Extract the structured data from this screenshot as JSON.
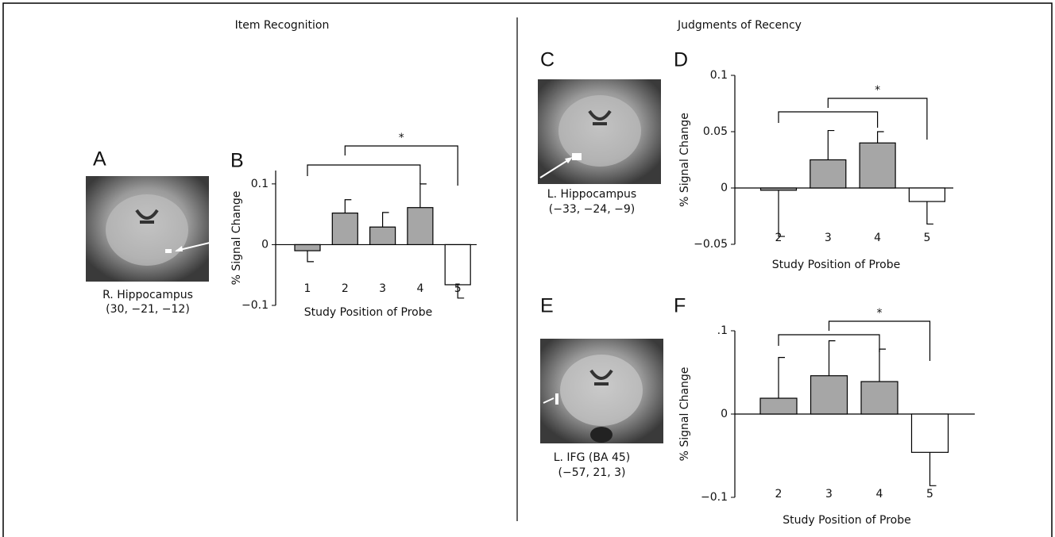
{
  "headings": [
    "Item Recognition",
    "Judgments of Recency"
  ],
  "images": [
    {
      "letter": "A",
      "caption": [
        "R. Hippocampus",
        "(30, −21, −12)"
      ]
    },
    {
      "letter": "C",
      "caption": [
        "L. Hippocampus",
        "(−33, −24, −9)"
      ]
    },
    {
      "letter": "E",
      "caption": [
        "L. IFG (BA 45)",
        "(−57, 21, 3)"
      ]
    }
  ],
  "chart_data": [
    {
      "type": "bar",
      "panel": "B",
      "ylabel": "% Signal Change",
      "xlabel": "Study Position of Probe",
      "categories": [
        "1",
        "2",
        "3",
        "4",
        "5"
      ],
      "values": [
        -0.01,
        0.052,
        0.029,
        0.061,
        -0.066
      ],
      "errors": [
        0.018,
        0.022,
        0.024,
        0.039,
        0.022
      ],
      "colors": [
        "#a6a6a6",
        "#a6a6a6",
        "#a6a6a6",
        "#a6a6a6",
        "#ffffff"
      ],
      "ylim": [
        -0.1,
        0.122
      ],
      "yticks": [
        {
          "value": -0.1,
          "label": "−0.1"
        },
        0,
        0.1
      ],
      "brackets": [
        [
          0,
          3
        ],
        [
          1,
          4
        ]
      ],
      "annotation": "*"
    },
    {
      "type": "bar",
      "panel": "D",
      "ylabel": "% Signal Change",
      "xlabel": "Study Position of Probe",
      "categories": [
        "2",
        "3",
        "4",
        "5"
      ],
      "values": [
        -0.002,
        0.025,
        0.04,
        -0.012
      ],
      "errors": [
        0.041,
        0.026,
        0.01,
        0.02
      ],
      "colors": [
        "#a6a6a6",
        "#a6a6a6",
        "#a6a6a6",
        "#ffffff"
      ],
      "ylim": [
        -0.05,
        0.1
      ],
      "yticks": [
        {
          "value": -0.05,
          "label": "−0.05"
        },
        0,
        0.05,
        0.1
      ],
      "brackets": [
        [
          0,
          2
        ],
        [
          1,
          3
        ]
      ],
      "annotation": "*"
    },
    {
      "type": "bar",
      "panel": "F",
      "ylabel": "% Signal Change",
      "xlabel": "Study Position of Probe",
      "categories": [
        "2",
        "3",
        "4",
        "5"
      ],
      "values": [
        0.019,
        0.046,
        0.039,
        -0.046
      ],
      "errors": [
        0.049,
        0.042,
        0.039,
        0.04
      ],
      "colors": [
        "#a6a6a6",
        "#a6a6a6",
        "#a6a6a6",
        "#ffffff"
      ],
      "ylim": [
        -0.1,
        0.1
      ],
      "yticks": [
        {
          "value": -0.1,
          "label": "−0.1"
        },
        0,
        {
          "value": 0.1,
          "label": ".1"
        }
      ],
      "brackets": [
        [
          0,
          2
        ],
        [
          1,
          3
        ]
      ],
      "annotation": "*"
    }
  ]
}
